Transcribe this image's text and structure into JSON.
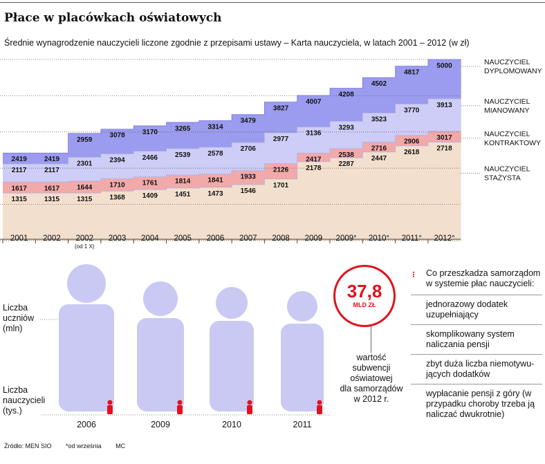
{
  "title": "Płace w placówkach oświatowych",
  "subtitle": "Średnie wynagrodzenie nauczycieli liczone zgodnie z przepisami ustawy – Karta nauczyciela, w latach 2001 – 2012 (w zł)",
  "chart_data": {
    "type": "area",
    "categories": [
      "2001",
      "2002",
      "2002",
      "2003",
      "2004",
      "2005",
      "2006",
      "2007",
      "2008",
      "2009",
      "2009°",
      "2010°",
      "2011°",
      "2012°"
    ],
    "category_notes": [
      "",
      "",
      "(od 1 X)",
      "",
      "",
      "",
      "",
      "",
      "",
      "",
      "",
      "",
      "",
      ""
    ],
    "series": [
      {
        "name": "NAUCZYCIEL DYPLOMOWANY",
        "color": "#9b9bef",
        "values": [
          2419,
          2419,
          2959,
          3078,
          3170,
          3265,
          3314,
          3479,
          3827,
          4007,
          4208,
          4502,
          4817,
          5000
        ]
      },
      {
        "name": "NAUCZYCIEL MIANOWANY",
        "color": "#cdcdf7",
        "values": [
          2117,
          2117,
          2301,
          2394,
          2466,
          2539,
          2578,
          2706,
          2977,
          3136,
          3293,
          3523,
          3770,
          3913
        ]
      },
      {
        "name": "NAUCZYCIEL KONTRAKTOWY",
        "color": "#f2a9a9",
        "values": [
          1617,
          1617,
          1644,
          1710,
          1761,
          1814,
          1841,
          1933,
          2126,
          2417,
          2538,
          2716,
          2906,
          3017
        ]
      },
      {
        "name": "NAUCZYCIEL STAŻYSTA",
        "color": "#f2dfcd",
        "values": [
          1315,
          1315,
          1315,
          1368,
          1409,
          1451,
          1473,
          1546,
          1701,
          2178,
          2287,
          2447,
          2618,
          2718
        ]
      }
    ],
    "ylim": [
      0,
      5000
    ]
  },
  "people": {
    "students_label": "Liczba\nuczniów\n(mln)",
    "teachers_label": "Liczba\nnauczycieli\n(tys.)",
    "years": [
      "2006",
      "2009",
      "2010",
      "2011"
    ],
    "student_color": "#c9c9f4",
    "teacher_color": "#e3101c"
  },
  "subsidy": {
    "value": "37,8",
    "unit": "MLD ZŁ",
    "caption": "wartość\nsubwencji\noświatowej\ndla samorządów\nw 2012 r."
  },
  "problems": {
    "heading": "Co przeszkadza samorządom w systemie płac nauczycieli:",
    "items": [
      "jednorazowy dodatek uzupełniający",
      "skomplikowany system naliczania pensji",
      "zbyt duża liczba niemotywu-jących dodatków",
      "wypłacanie pensji z góry (w przypadku choroby trzeba ją naliczać dwukrotnie)"
    ]
  },
  "footer": {
    "source": "Źródło: MEN SIO",
    "note": "*od września",
    "initials": "MC"
  }
}
